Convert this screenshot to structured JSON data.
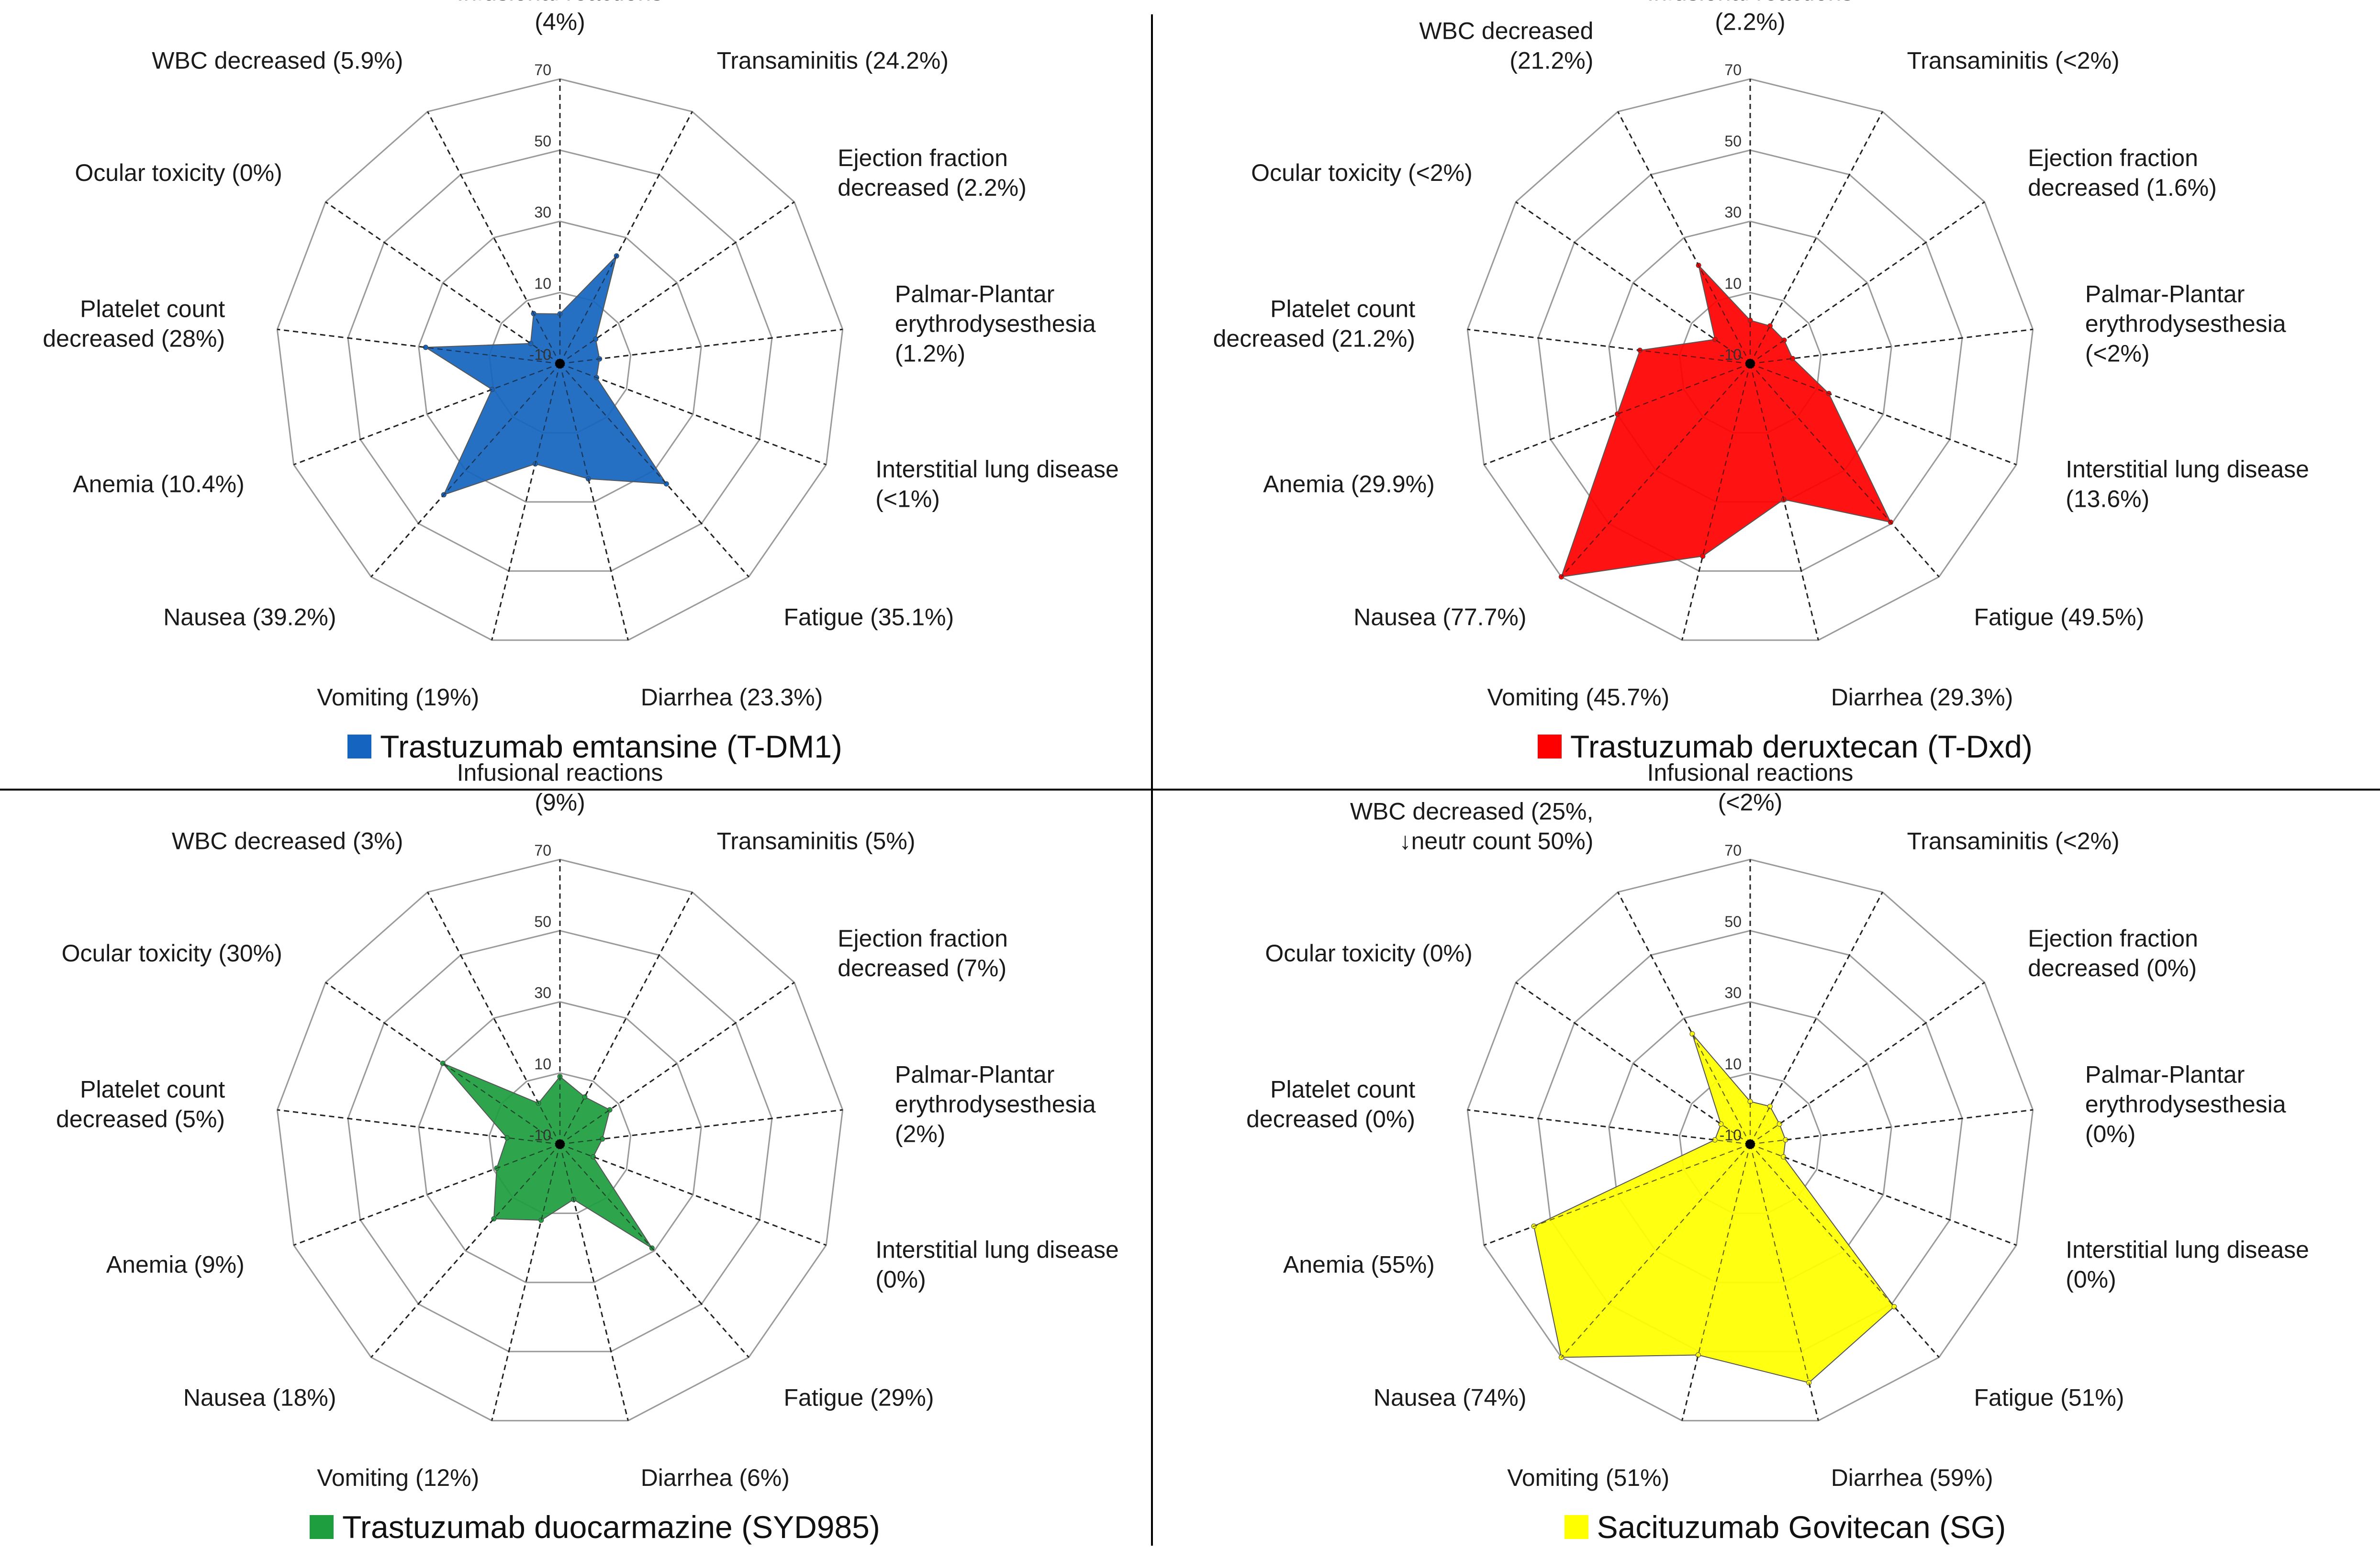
{
  "categories": [
    "Infusional reactions",
    "Transaminitis",
    "Ejection fraction decreased",
    "Palmar-Plantar erythrodysesthesia",
    "Interstitial lung disease",
    "Fatigue",
    "Diarrhea",
    "Vomiting",
    "Nausea",
    "Anemia",
    "Platelet count decreased",
    "Ocular toxicity",
    "WBC decreased"
  ],
  "ticks": [
    -10,
    10,
    30,
    50,
    70
  ],
  "chart_data": [
    {
      "type": "radar",
      "series": [
        {
          "name": "Trastuzumab emtansine (T-DM1)",
          "color": "#1565c0",
          "values": [
            4,
            24.2,
            2.2,
            1.2,
            1,
            35.1,
            23.3,
            19,
            39.2,
            10.4,
            28,
            0,
            5.9
          ]
        }
      ],
      "rlim": [
        -10,
        70
      ],
      "labels": [
        [
          "Infusional reactions",
          "(4%)"
        ],
        [
          "Transaminitis (24.2%)"
        ],
        [
          "Ejection fraction",
          "decreased (2.2%)"
        ],
        [
          "Palmar-Plantar",
          "erythrodysesthesia",
          "(1.2%)"
        ],
        [
          "Interstitial lung disease",
          "(<1%)"
        ],
        [
          "Fatigue (35.1%)"
        ],
        [
          "Diarrhea (23.3%)"
        ],
        [
          "Vomiting (19%)"
        ],
        [
          "Nausea (39.2%)"
        ],
        [
          "Anemia (10.4%)"
        ],
        [
          "Platelet count",
          "decreased (28%)"
        ],
        [
          "Ocular toxicity (0%)"
        ],
        [
          "WBC decreased (5.9%)"
        ]
      ]
    },
    {
      "type": "radar",
      "series": [
        {
          "name": "Trastuzumab deruxtecan (T-Dxd)",
          "color": "#ff0000",
          "values": [
            2.2,
            2,
            1.6,
            2,
            13.6,
            49.5,
            29.3,
            45.7,
            77.7,
            29.9,
            21.2,
            2,
            21.2
          ]
        }
      ],
      "rlim": [
        -10,
        70
      ],
      "labels": [
        [
          "Infusional reactions",
          "(2.2%)"
        ],
        [
          "Transaminitis (<2%)"
        ],
        [
          "Ejection fraction",
          "decreased (1.6%)"
        ],
        [
          "Palmar-Plantar",
          "erythrodysesthesia",
          "(<2%)"
        ],
        [
          "Interstitial lung disease",
          "(13.6%)"
        ],
        [
          "Fatigue (49.5%)"
        ],
        [
          "Diarrhea (29.3%)"
        ],
        [
          "Vomiting (45.7%)"
        ],
        [
          "Nausea (77.7%)"
        ],
        [
          "Anemia (29.9%)"
        ],
        [
          "Platelet count",
          "decreased (21.2%)"
        ],
        [
          "Ocular toxicity (<2%)"
        ],
        [
          "WBC decreased",
          "(21.2%)"
        ]
      ]
    },
    {
      "type": "radar",
      "series": [
        {
          "name": "Trastuzumab duocarmazine (SYD985)",
          "color": "#1e9e3e",
          "values": [
            9,
            5,
            7,
            2,
            0,
            29,
            6,
            12,
            18,
            9,
            5,
            30,
            3
          ]
        }
      ],
      "rlim": [
        -10,
        70
      ],
      "labels": [
        [
          "Infusional reactions",
          "(9%)"
        ],
        [
          "Transaminitis (5%)"
        ],
        [
          "Ejection fraction",
          "decreased (7%)"
        ],
        [
          "Palmar-Plantar",
          "erythrodysesthesia",
          "(2%)"
        ],
        [
          "Interstitial lung disease",
          "(0%)"
        ],
        [
          "Fatigue (29%)"
        ],
        [
          "Diarrhea (6%)"
        ],
        [
          "Vomiting (12%)"
        ],
        [
          "Nausea (18%)"
        ],
        [
          "Anemia (9%)"
        ],
        [
          "Platelet count",
          "decreased (5%)"
        ],
        [
          "Ocular toxicity (30%)"
        ],
        [
          "WBC decreased (3%)"
        ]
      ]
    },
    {
      "type": "radar",
      "series": [
        {
          "name": "Sacituzumab Govitecan (SG)",
          "color": "#ffff00",
          "values": [
            2,
            2,
            0,
            0,
            0,
            51,
            59,
            51,
            74,
            55,
            0,
            0,
            25
          ]
        }
      ],
      "rlim": [
        -10,
        70
      ],
      "labels": [
        [
          "Infusional reactions",
          "(<2%)"
        ],
        [
          "Transaminitis (<2%)"
        ],
        [
          "Ejection fraction",
          "decreased (0%)"
        ],
        [
          "Palmar-Plantar",
          "erythrodysesthesia",
          "(0%)"
        ],
        [
          "Interstitial lung disease",
          "(0%)"
        ],
        [
          "Fatigue (51%)"
        ],
        [
          "Diarrhea (59%)"
        ],
        [
          "Vomiting (51%)"
        ],
        [
          "Nausea (74%)"
        ],
        [
          "Anemia (55%)"
        ],
        [
          "Platelet count",
          "decreased (0%)"
        ],
        [
          "Ocular toxicity (0%)"
        ],
        [
          "WBC decreased (25%,",
          "↓neutr count 50%)"
        ]
      ]
    }
  ],
  "panels": [
    {
      "legend_label": "Trastuzumab emtansine (T-DM1)"
    },
    {
      "legend_label": "Trastuzumab deruxtecan (T-Dxd)"
    },
    {
      "legend_label": "Trastuzumab duocarmazine (SYD985)"
    },
    {
      "legend_label": "Sacituzumab Govitecan (SG)"
    }
  ],
  "colors": {
    "grid": "#9a9a9a",
    "spoke": "#222222",
    "divider": "#000000"
  }
}
